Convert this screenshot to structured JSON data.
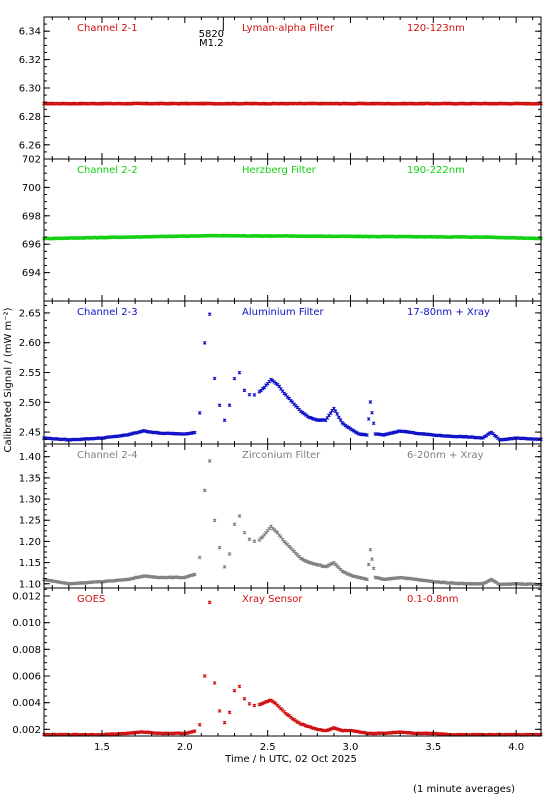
{
  "figure": {
    "ylabel": "Calibrated Signal / (mW m⁻²)",
    "xlabel": "Time / h UTC, 02 Oct 2025",
    "footnote": "(1 minute averages)",
    "marker": {
      "x": 2.16,
      "label_top": "5820",
      "label_bottom": "M1.2"
    }
  },
  "chart_data": [
    {
      "type": "scatter",
      "panel": "channel-2-1",
      "channel_label": "Channel 2-1",
      "filter_label": "Lyman-alpha Filter",
      "band_label": "120-123nm",
      "color": "#d01010",
      "xlim": [
        1.15,
        4.15
      ],
      "ylim": [
        6.25,
        6.35
      ],
      "yticks": [
        6.26,
        6.28,
        6.3,
        6.32,
        6.34
      ],
      "ytick_labels": [
        "6.26",
        "6.28",
        "6.30",
        "6.32",
        "6.34"
      ],
      "series": [
        {
          "x": [
            1.15,
            4.15
          ],
          "y": [
            6.289,
            6.289
          ]
        }
      ]
    },
    {
      "type": "scatter",
      "panel": "channel-2-2",
      "channel_label": "Channel 2-2",
      "filter_label": "Herzberg Filter",
      "band_label": "190-222nm",
      "color": "#10d010",
      "xlim": [
        1.15,
        4.15
      ],
      "ylim": [
        692,
        702
      ],
      "yticks": [
        694,
        696,
        698,
        700,
        702
      ],
      "ytick_labels": [
        "694",
        "696",
        "698",
        "700",
        "702"
      ],
      "series": [
        {
          "x": [
            1.15,
            2.16,
            3.82,
            4.15
          ],
          "y": [
            696.4,
            696.6,
            696.5,
            696.4
          ]
        }
      ]
    },
    {
      "type": "scatter",
      "panel": "channel-2-3",
      "channel_label": "Channel 2-3",
      "filter_label": "Aluminium Filter",
      "band_label": "17-80nm + Xray",
      "color": "#1010c8",
      "xlim": [
        1.15,
        4.15
      ],
      "ylim": [
        2.43,
        2.67
      ],
      "yticks": [
        2.45,
        2.5,
        2.55,
        2.6,
        2.65
      ],
      "ytick_labels": [
        "2.45",
        "2.50",
        "2.55",
        "2.60",
        "2.65"
      ],
      "series": [
        {
          "x": [
            1.15,
            1.3,
            1.5,
            1.65,
            1.75,
            1.85,
            2.0,
            2.08,
            2.1,
            2.12,
            2.14,
            2.16,
            2.17,
            2.18,
            2.2,
            2.22,
            2.24,
            2.26,
            2.28,
            2.3,
            2.33,
            2.36,
            2.4,
            2.44,
            2.48,
            2.52,
            2.56,
            2.6,
            2.65,
            2.7,
            2.75,
            2.8,
            2.85,
            2.9,
            2.95,
            3.0,
            3.05,
            3.1,
            3.12,
            3.15,
            3.2,
            3.3,
            3.4,
            3.5,
            3.6,
            3.7,
            3.8,
            3.85,
            3.9,
            4.0,
            4.15
          ],
          "y": [
            2.44,
            2.437,
            2.44,
            2.445,
            2.452,
            2.448,
            2.447,
            2.45,
            2.515,
            2.6,
            2.655,
            2.64,
            2.59,
            2.54,
            2.51,
            2.48,
            2.47,
            2.48,
            2.51,
            2.54,
            2.55,
            2.52,
            2.51,
            2.515,
            2.525,
            2.538,
            2.53,
            2.515,
            2.5,
            2.485,
            2.475,
            2.47,
            2.47,
            2.49,
            2.465,
            2.455,
            2.447,
            2.445,
            2.5,
            2.447,
            2.445,
            2.452,
            2.448,
            2.445,
            2.443,
            2.442,
            2.44,
            2.45,
            2.437,
            2.44,
            2.438
          ]
        }
      ]
    },
    {
      "type": "scatter",
      "panel": "channel-2-4",
      "channel_label": "Channel 2-4",
      "filter_label": "Zirconium Filter",
      "band_label": "6-20nm + Xray",
      "color": "#808080",
      "xlim": [
        1.15,
        4.15
      ],
      "ylim": [
        1.09,
        1.43
      ],
      "yticks": [
        1.1,
        1.15,
        1.2,
        1.25,
        1.3,
        1.35,
        1.4
      ],
      "ytick_labels": [
        "1.10",
        "1.15",
        "1.20",
        "1.25",
        "1.30",
        "1.35",
        "1.40"
      ],
      "series": [
        {
          "x": [
            1.15,
            1.3,
            1.5,
            1.65,
            1.75,
            1.85,
            2.0,
            2.08,
            2.1,
            2.12,
            2.14,
            2.16,
            2.17,
            2.18,
            2.2,
            2.22,
            2.24,
            2.26,
            2.28,
            2.3,
            2.33,
            2.36,
            2.4,
            2.44,
            2.48,
            2.52,
            2.56,
            2.6,
            2.65,
            2.7,
            2.75,
            2.8,
            2.85,
            2.9,
            2.95,
            3.0,
            3.05,
            3.1,
            3.12,
            3.15,
            3.2,
            3.3,
            3.4,
            3.5,
            3.6,
            3.7,
            3.8,
            3.85,
            3.9,
            4.0,
            4.15
          ],
          "y": [
            1.11,
            1.1,
            1.105,
            1.11,
            1.118,
            1.115,
            1.115,
            1.125,
            1.2,
            1.32,
            1.4,
            1.38,
            1.3,
            1.25,
            1.21,
            1.16,
            1.14,
            1.15,
            1.19,
            1.24,
            1.26,
            1.22,
            1.2,
            1.2,
            1.215,
            1.235,
            1.22,
            1.2,
            1.18,
            1.16,
            1.15,
            1.145,
            1.14,
            1.15,
            1.13,
            1.12,
            1.115,
            1.11,
            1.18,
            1.115,
            1.11,
            1.115,
            1.11,
            1.105,
            1.102,
            1.1,
            1.1,
            1.11,
            1.098,
            1.1,
            1.098
          ]
        }
      ]
    },
    {
      "type": "scatter",
      "panel": "goes",
      "channel_label": "GOES",
      "filter_label": "Xray Sensor",
      "band_label": "0.1-0.8nm",
      "color": "#d01010",
      "xlim": [
        1.15,
        4.15
      ],
      "ylim": [
        0.0015,
        0.0126
      ],
      "yticks": [
        0.002,
        0.004,
        0.006,
        0.008,
        0.01,
        0.012
      ],
      "ytick_labels": [
        "0.002",
        "0.004",
        "0.006",
        "0.008",
        "0.010",
        "0.012"
      ],
      "series": [
        {
          "x": [
            1.15,
            1.3,
            1.5,
            1.65,
            1.75,
            1.85,
            2.0,
            2.08,
            2.1,
            2.12,
            2.14,
            2.16,
            2.17,
            2.18,
            2.2,
            2.22,
            2.24,
            2.26,
            2.28,
            2.3,
            2.33,
            2.36,
            2.4,
            2.44,
            2.48,
            2.52,
            2.56,
            2.6,
            2.65,
            2.7,
            2.75,
            2.8,
            2.85,
            2.9,
            2.95,
            3.0,
            3.05,
            3.1,
            3.15,
            3.2,
            3.3,
            3.4,
            3.5,
            3.6,
            3.7,
            3.8,
            3.9,
            4.0,
            4.15
          ],
          "y": [
            0.0016,
            0.0016,
            0.0016,
            0.0017,
            0.0018,
            0.0017,
            0.0017,
            0.0019,
            0.0028,
            0.006,
            0.0118,
            0.0112,
            0.008,
            0.0055,
            0.004,
            0.0028,
            0.0025,
            0.0027,
            0.0038,
            0.0049,
            0.0052,
            0.0043,
            0.0038,
            0.0038,
            0.004,
            0.0042,
            0.0038,
            0.0033,
            0.0028,
            0.0024,
            0.0022,
            0.002,
            0.0019,
            0.0021,
            0.0019,
            0.0019,
            0.0018,
            0.0017,
            0.0017,
            0.0017,
            0.0018,
            0.0017,
            0.0017,
            0.0016,
            0.0016,
            0.0016,
            0.0016,
            0.0016,
            0.0016
          ]
        }
      ]
    }
  ],
  "xaxis": {
    "ticks": [
      1.5,
      2.0,
      2.5,
      3.0,
      3.5,
      4.0
    ],
    "tick_labels": [
      "1.5",
      "2.0",
      "2.5",
      "3.0",
      "3.5",
      "4.0"
    ],
    "minor_step": 0.1
  }
}
